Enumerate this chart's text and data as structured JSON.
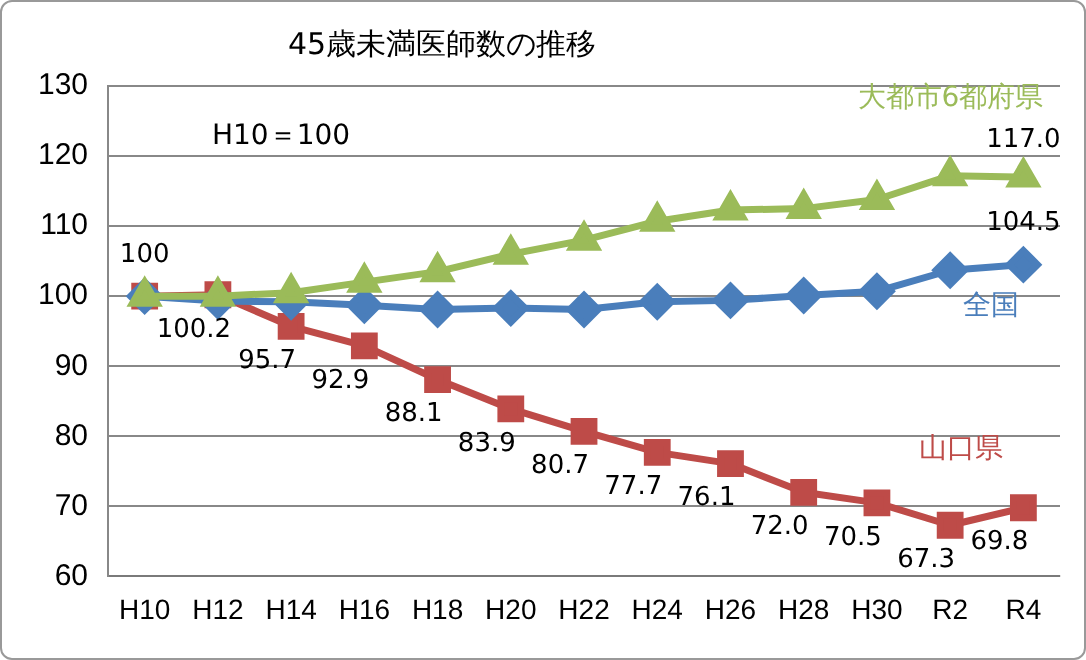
{
  "chart_data": {
    "type": "line",
    "title": "45歳未満医師数の推移",
    "categories": [
      "H10",
      "H12",
      "H14",
      "H16",
      "H18",
      "H20",
      "H22",
      "H24",
      "H26",
      "H28",
      "H30",
      "R2",
      "R4"
    ],
    "series": [
      {
        "name": "大都市6都府県",
        "color": "#9bbb59",
        "marker": "triangle",
        "values": [
          100,
          100,
          100.5,
          102,
          103.5,
          106,
          108,
          110.7,
          112.3,
          112.5,
          113.8,
          117.2,
          117.0
        ],
        "value_labels": [
          null,
          null,
          null,
          null,
          null,
          null,
          null,
          null,
          null,
          null,
          null,
          null,
          "117.0"
        ]
      },
      {
        "name": "全国",
        "color": "#4a7ebb",
        "marker": "diamond",
        "values": [
          100,
          99.3,
          99.2,
          98.7,
          98.1,
          98.3,
          98.1,
          99.2,
          99.4,
          100.1,
          100.7,
          103.7,
          104.5
        ],
        "value_labels": [
          null,
          null,
          null,
          null,
          null,
          null,
          null,
          null,
          null,
          null,
          null,
          null,
          "104.5"
        ]
      },
      {
        "name": "山口県",
        "color": "#be4b48",
        "marker": "square",
        "values": [
          100,
          100.2,
          95.7,
          92.9,
          88.1,
          83.9,
          80.7,
          77.7,
          76.1,
          72.0,
          70.5,
          67.3,
          69.8
        ],
        "value_labels": [
          "100",
          "100.2",
          "95.7",
          "92.9",
          "88.1",
          "83.9",
          "80.7",
          "77.7",
          "76.1",
          "72.0",
          "70.5",
          "67.3",
          "69.8"
        ]
      }
    ],
    "ylim": [
      60,
      130
    ],
    "yticks": [
      60,
      70,
      80,
      90,
      100,
      110,
      120,
      130
    ],
    "grid": "y",
    "legend": false,
    "annotations": [
      "H10＝100"
    ]
  }
}
